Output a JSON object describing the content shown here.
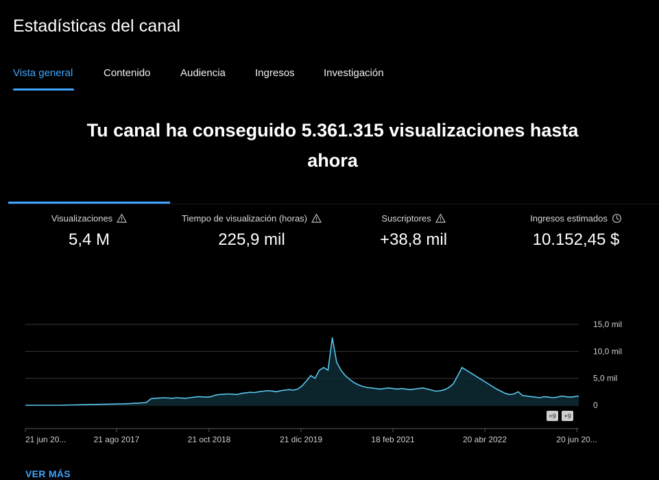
{
  "header": {
    "title": "Estadísticas del canal"
  },
  "tabs": [
    {
      "label": "Vista general",
      "active": true
    },
    {
      "label": "Contenido",
      "active": false
    },
    {
      "label": "Audiencia",
      "active": false
    },
    {
      "label": "Ingresos",
      "active": false
    },
    {
      "label": "Investigación",
      "active": false
    }
  ],
  "headline": "Tu canal ha conseguido 5.361.315 visualizaciones hasta ahora",
  "metrics": [
    {
      "label": "Visualizaciones",
      "value": "5,4 M",
      "icon": "warning-icon"
    },
    {
      "label": "Tiempo de visualización (horas)",
      "value": "225,9 mil",
      "icon": "warning-icon"
    },
    {
      "label": "Suscriptores",
      "value": "+38,8 mil",
      "icon": "warning-icon"
    },
    {
      "label": "Ingresos estimados",
      "value": "10.152,45 $",
      "icon": "clock-icon"
    }
  ],
  "chart_data": {
    "type": "area",
    "x_ticks": [
      "21 jun 20...",
      "21 ago 2017",
      "21 oct 2018",
      "21 dic 2019",
      "18 feb 2021",
      "20 abr 2022",
      "20 jun 20..."
    ],
    "y_ticks": [
      "15,0 mil",
      "10,0 mil",
      "5,0 mil",
      "0"
    ],
    "ylim": [
      0,
      15000
    ],
    "line_color": "#5ac8f0",
    "badges": [
      "+9",
      "+9"
    ],
    "series": [
      {
        "values": [
          0,
          0,
          0,
          0,
          0,
          0,
          0,
          0,
          0,
          20,
          40,
          60,
          80,
          100,
          120,
          140,
          150,
          170,
          180,
          200,
          220,
          240,
          260,
          280,
          300,
          350,
          400,
          450,
          500,
          1200,
          1300,
          1350,
          1400,
          1350,
          1300,
          1400,
          1350,
          1300,
          1400,
          1500,
          1600,
          1550,
          1500,
          1600,
          1900,
          2000,
          2050,
          2100,
          2050,
          2000,
          2200,
          2300,
          2400,
          2350,
          2500,
          2600,
          2700,
          2650,
          2500,
          2700,
          2800,
          2900,
          2800,
          3000,
          3600,
          4500,
          5500,
          5000,
          6500,
          7000,
          6500,
          12500,
          8000,
          6500,
          5500,
          4800,
          4200,
          3800,
          3500,
          3300,
          3200,
          3100,
          3000,
          3100,
          3200,
          3100,
          3000,
          3100,
          3000,
          2900,
          3000,
          3100,
          3200,
          3000,
          2800,
          2600,
          2700,
          2900,
          3300,
          4000,
          5500,
          7000,
          6500,
          6000,
          5500,
          5000,
          4500,
          4000,
          3500,
          3000,
          2600,
          2200,
          2000,
          2100,
          2500,
          1800,
          1700,
          1600,
          1500,
          1400,
          1600,
          1500,
          1400,
          1500,
          1700,
          1600,
          1500,
          1600,
          1700
        ]
      }
    ]
  },
  "footer": {
    "see_more": "VER MÁS"
  }
}
